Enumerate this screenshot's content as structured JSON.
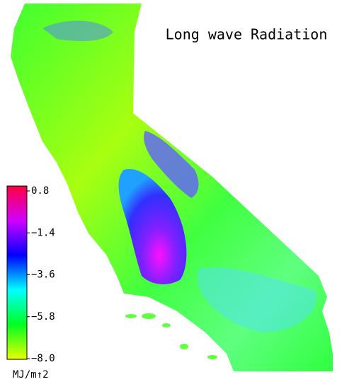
{
  "title": "Long wave Radiation",
  "legend": {
    "unit": "MJ/m↑2",
    "lim": [
      -8.0,
      0.8
    ],
    "ticks": [
      {
        "value": -8.0,
        "label": "−8.0"
      },
      {
        "value": -5.8,
        "label": "−5.8"
      },
      {
        "value": -3.6,
        "label": "−3.6"
      },
      {
        "value": -1.4,
        "label": "−1.4"
      },
      0.8
    ],
    "colors": [
      "#e8ff00",
      "#00ff20",
      "#00ffff",
      "#0000ff",
      "#d000ff",
      "#ff0040"
    ]
  }
}
